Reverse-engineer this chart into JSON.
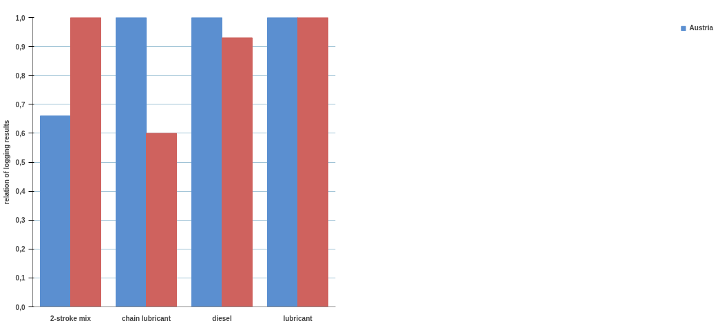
{
  "chart_data": {
    "type": "bar",
    "ylabel": "relation of logging results",
    "categories": [
      "2-stroke mix",
      "chain lubricant",
      "diesel",
      "lubricant"
    ],
    "series": [
      {
        "name": "Austria",
        "color": "#5b8fd0",
        "values": [
          0.66,
          1.0,
          1.0,
          1.0
        ]
      },
      {
        "color": "#cf625e",
        "values": [
          1.0,
          0.6,
          0.93,
          1.0
        ]
      }
    ],
    "ylim": [
      0,
      1.0
    ],
    "yticks": [
      {
        "value": 0,
        "label": "0,0"
      },
      {
        "value": 0.1,
        "label": "0,1"
      },
      {
        "value": 0.2,
        "label": "0,2"
      },
      {
        "value": 0.3,
        "label": "0,3"
      },
      {
        "value": 0.4,
        "label": "0,4"
      },
      {
        "value": 0.5,
        "label": "0,5"
      },
      {
        "value": 0.6,
        "label": "0,6"
      },
      {
        "value": 0.7,
        "label": "0,7"
      },
      {
        "value": 0.8,
        "label": "0,8"
      },
      {
        "value": 0.9,
        "label": "0,9"
      },
      {
        "value": 1.0,
        "label": "1,0"
      }
    ],
    "grid": "y",
    "legend": "right"
  }
}
